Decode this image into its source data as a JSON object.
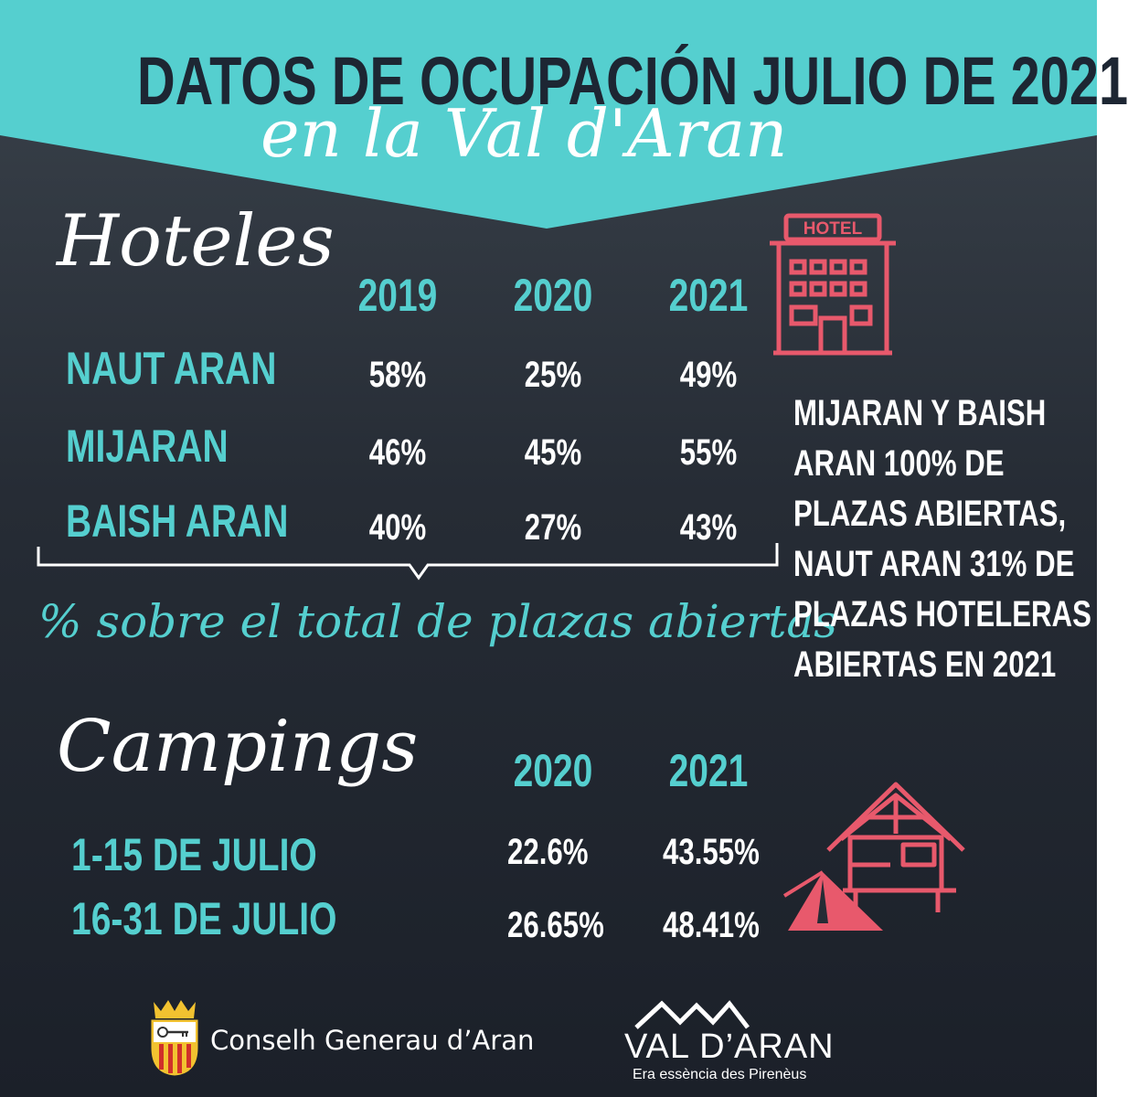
{
  "header": {
    "title": "DATOS DE OCUPACIÓN JULIO DE 2021",
    "subtitle": "en la Val d'Aran"
  },
  "hotels": {
    "title": "Hoteles",
    "years": [
      "2019",
      "2020",
      "2021"
    ],
    "rows": [
      {
        "label": "NAUT ARAN",
        "values": [
          "58%",
          "25%",
          "49%"
        ]
      },
      {
        "label": "MIJARAN",
        "values": [
          "46%",
          "45%",
          "55%"
        ]
      },
      {
        "label": "BAISH ARAN",
        "values": [
          "40%",
          "27%",
          "43%"
        ]
      }
    ],
    "footnote": "% sobre el total de plazas abiertas",
    "note_lines": [
      "MIJARAN Y BAISH",
      "ARAN 100% DE",
      "PLAZAS ABIERTAS,",
      "NAUT ARAN 31% DE",
      "PLAZAS HOTELERAS",
      "ABIERTAS EN 2021"
    ],
    "icon": "hotel-building-icon",
    "icon_sign": "HOTEL"
  },
  "campings": {
    "title": "Campings",
    "years": [
      "2020",
      "2021"
    ],
    "rows": [
      {
        "label": "1-15 DE JULIO",
        "values": [
          "22.6%",
          "43.55%"
        ]
      },
      {
        "label": "16-31 DE JULIO",
        "values": [
          "26.65%",
          "48.41%"
        ]
      }
    ],
    "icon": "cabin-tent-icon"
  },
  "footer": {
    "conselh": "Conselh Generau d’Aran",
    "brand": "VAL D’ARAN",
    "brand_tagline": "Era essència des Pirenèus"
  },
  "colors": {
    "teal": "#55cfcf",
    "dark": "#1d2633",
    "coral": "#e8596c"
  }
}
